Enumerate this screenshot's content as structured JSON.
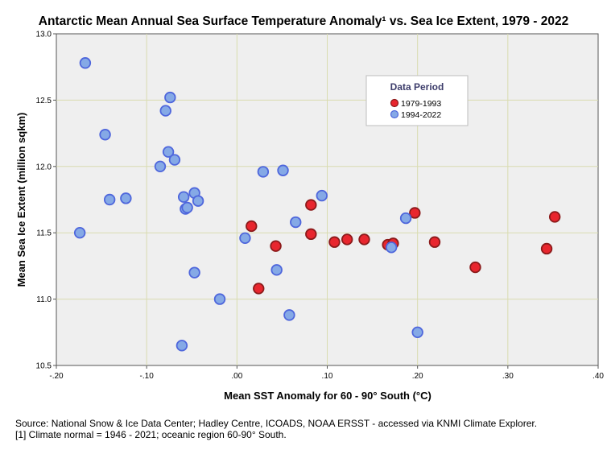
{
  "chart_data": {
    "type": "scatter",
    "title": "Antarctic Mean Annual Sea Surface Temperature Anomaly¹ vs. Sea Ice Extent, 1979 - 2022",
    "xlabel": "Mean SST Anomaly for 60 - 90° South (°C)",
    "ylabel": "Mean Sea Ice Extent (million sqkm)",
    "xlim": [
      -0.2,
      0.4
    ],
    "ylim": [
      10.5,
      13.0
    ],
    "grid": true,
    "x_ticks": [
      -0.2,
      -0.1,
      0.0,
      0.1,
      0.2,
      0.3,
      0.4
    ],
    "x_tick_labels": [
      "-.20",
      "-.10",
      ".00",
      ".10",
      ".20",
      ".30",
      ".40"
    ],
    "y_ticks": [
      10.5,
      11.0,
      11.5,
      12.0,
      12.5,
      13.0
    ],
    "y_tick_labels": [
      "10.5",
      "11.0",
      "11.5",
      "12.0",
      "12.5",
      "13.0"
    ],
    "legend": {
      "title": "Data Period",
      "placement": "top-right"
    },
    "series": [
      {
        "name": "1979-1993",
        "color": "#e8262e",
        "edge": "#8b1a1a",
        "points": [
          [
            0.016,
            11.55
          ],
          [
            0.024,
            11.08
          ],
          [
            0.043,
            11.4
          ],
          [
            0.082,
            11.71
          ],
          [
            0.082,
            11.49
          ],
          [
            0.108,
            11.43
          ],
          [
            0.122,
            11.45
          ],
          [
            0.141,
            11.45
          ],
          [
            0.167,
            11.41
          ],
          [
            0.173,
            11.42
          ],
          [
            0.197,
            11.65
          ],
          [
            0.219,
            11.43
          ],
          [
            0.264,
            11.24
          ],
          [
            0.343,
            11.38
          ],
          [
            0.352,
            11.62
          ]
        ]
      },
      {
        "name": "1994-2022",
        "color": "#85a9e6",
        "edge": "#4e66dc",
        "points": [
          [
            -0.168,
            12.78
          ],
          [
            -0.146,
            12.24
          ],
          [
            -0.141,
            11.75
          ],
          [
            -0.123,
            11.76
          ],
          [
            -0.174,
            11.5
          ],
          [
            -0.074,
            12.52
          ],
          [
            -0.079,
            12.42
          ],
          [
            -0.076,
            12.11
          ],
          [
            -0.069,
            12.05
          ],
          [
            -0.085,
            12.0
          ],
          [
            -0.059,
            11.77
          ],
          [
            -0.047,
            11.8
          ],
          [
            -0.043,
            11.74
          ],
          [
            -0.057,
            11.68
          ],
          [
            -0.055,
            11.69
          ],
          [
            -0.047,
            11.2
          ],
          [
            -0.061,
            10.65
          ],
          [
            -0.019,
            11.0
          ],
          [
            0.009,
            11.46
          ],
          [
            0.029,
            11.96
          ],
          [
            0.051,
            11.97
          ],
          [
            0.065,
            11.58
          ],
          [
            0.044,
            11.22
          ],
          [
            0.058,
            10.88
          ],
          [
            0.094,
            11.78
          ],
          [
            0.187,
            11.61
          ],
          [
            0.171,
            11.39
          ],
          [
            0.2,
            10.75
          ]
        ]
      }
    ]
  },
  "footnotes": {
    "source": "Source: National Snow & Ice Data Center; Hadley Centre, ICOADS, NOAA ERSST - accessed via KNMI Climate Explorer.",
    "normal": "[1] Climate normal = 1946 - 2021; oceanic region 60-90° South."
  }
}
